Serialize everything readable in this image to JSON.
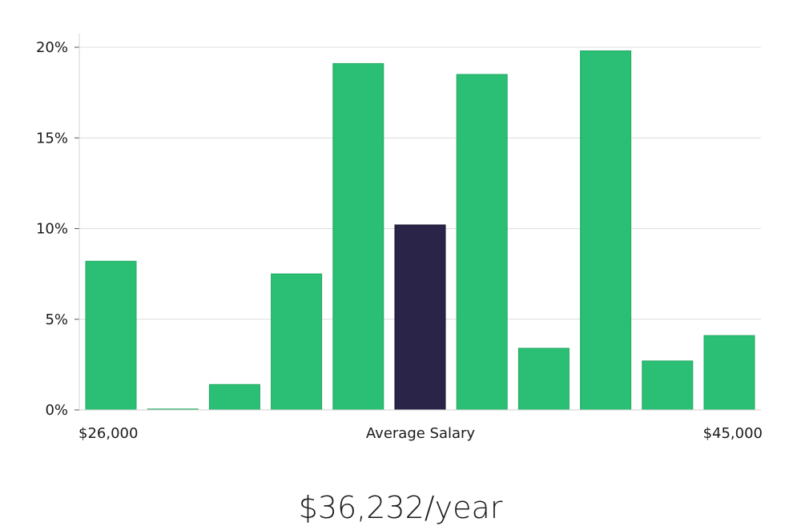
{
  "chart_data": {
    "type": "bar",
    "title": "",
    "xlabel": "Average Salary",
    "x_range_labels": {
      "min": "$26,000",
      "max": "$45,000"
    },
    "ylabel": "",
    "yticks": [
      "0%",
      "5%",
      "10%",
      "15%",
      "20%"
    ],
    "ylim": [
      0,
      20
    ],
    "grid": true,
    "values": [
      8.2,
      0.05,
      1.4,
      7.5,
      19.1,
      10.2,
      18.5,
      3.4,
      19.8,
      2.7,
      4.1
    ],
    "highlight_index": 5,
    "bar_color": "#2abf74",
    "highlight_color": "#2a2548"
  },
  "summary": {
    "salary": "$36,232/year"
  }
}
